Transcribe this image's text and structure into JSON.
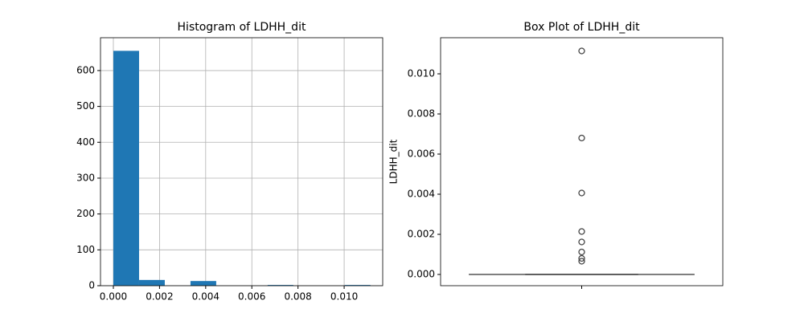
{
  "chart_data": [
    {
      "type": "histogram",
      "title": "Histogram of LDHH_dit",
      "bins": [
        0,
        0.001114,
        0.002228,
        0.003342,
        0.004456,
        0.00557,
        0.006684,
        0.007798,
        0.008912,
        0.010026,
        0.01114
      ],
      "counts": [
        655,
        16,
        0,
        13,
        0,
        0,
        2,
        0,
        0,
        2
      ],
      "color": "#1f77b4",
      "xlim": [
        -0.000557,
        0.01167
      ],
      "ylim": [
        0,
        691.6
      ],
      "xticks": [
        {
          "value": 0,
          "label": "0.000"
        },
        {
          "value": 0.002,
          "label": "0.002"
        },
        {
          "value": 0.004,
          "label": "0.004"
        },
        {
          "value": 0.006,
          "label": "0.006"
        },
        {
          "value": 0.008,
          "label": "0.008"
        },
        {
          "value": 0.01,
          "label": "0.010"
        }
      ],
      "yticks": [
        0,
        100,
        200,
        300,
        400,
        500,
        600
      ],
      "grid": true
    },
    {
      "type": "box",
      "title": "Box Plot of LDHH_dit",
      "ylabel": "LDHH_dit",
      "min": 0,
      "q1": 0,
      "median": 0,
      "q3": 0,
      "max": 0,
      "outliers": [
        0.01114,
        0.0068,
        0.00406,
        0.00214,
        0.00162,
        0.00112,
        0.0008,
        0.00066
      ],
      "color": "#1f77b4",
      "ylim": [
        -0.00056,
        0.0118
      ],
      "yticks": [
        {
          "value": 0,
          "label": "0.000"
        },
        {
          "value": 0.002,
          "label": "0.002"
        },
        {
          "value": 0.004,
          "label": "0.004"
        },
        {
          "value": 0.006,
          "label": "0.006"
        },
        {
          "value": 0.008,
          "label": "0.008"
        },
        {
          "value": 0.01,
          "label": "0.010"
        }
      ],
      "grid": false
    }
  ]
}
